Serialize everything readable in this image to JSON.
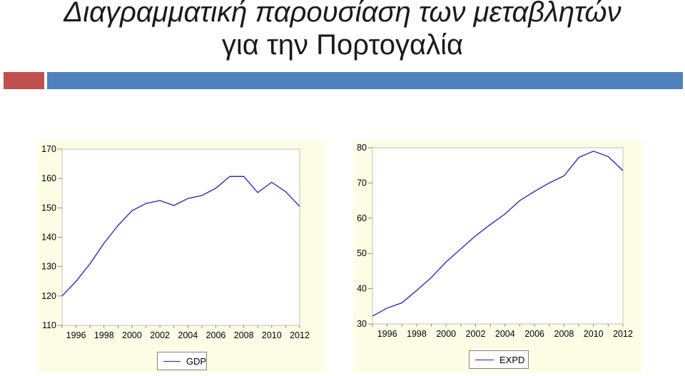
{
  "slide": {
    "title_line1": "Διαγραμματική παρουσίαση των μεταβλητών",
    "title_line2": "για την Πορτογαλία"
  },
  "colors": {
    "accent_red": "#c0504d",
    "accent_blue": "#4f81bd",
    "panel_bg": "#fdfde6",
    "line": "#1f1fb4"
  },
  "chart_data": [
    {
      "type": "line",
      "x": [
        1995,
        1996,
        1997,
        1998,
        1999,
        2000,
        2001,
        2002,
        2003,
        2004,
        2005,
        2006,
        2007,
        2008,
        2009,
        2010,
        2011,
        2012
      ],
      "series": [
        {
          "name": "GDP",
          "values": [
            120,
            125,
            131,
            138,
            144,
            149,
            151.5,
            152.5,
            150.8,
            153.2,
            154.2,
            156.7,
            160.7,
            160.7,
            155.2,
            158.7,
            155.5,
            150.5
          ]
        }
      ],
      "xticks": [
        "1996",
        "1998",
        "2000",
        "2002",
        "2004",
        "2006",
        "2008",
        "2010",
        "2012"
      ],
      "yticks": [
        "110",
        "120",
        "130",
        "140",
        "150",
        "160",
        "170"
      ],
      "ylim": [
        110,
        170
      ],
      "xlim": [
        1995,
        2012
      ],
      "legend": "bottom-center",
      "grid": false
    },
    {
      "type": "line",
      "x": [
        1995,
        1996,
        1997,
        1998,
        1999,
        2000,
        2001,
        2002,
        2003,
        2004,
        2005,
        2006,
        2007,
        2008,
        2009,
        2010,
        2011,
        2012
      ],
      "series": [
        {
          "name": "EXPD",
          "values": [
            32.2,
            34.5,
            36,
            39.5,
            43.2,
            47.6,
            51.3,
            55,
            58.2,
            61.2,
            65,
            67.6,
            70,
            72,
            77.2,
            79,
            77.5,
            73.5
          ]
        }
      ],
      "xticks": [
        "1996",
        "1998",
        "2000",
        "2002",
        "2004",
        "2006",
        "2008",
        "2010",
        "2012"
      ],
      "yticks": [
        "30",
        "40",
        "50",
        "60",
        "70",
        "80"
      ],
      "ylim": [
        30,
        80
      ],
      "xlim": [
        1995,
        2012
      ],
      "legend": "bottom-center",
      "grid": false
    }
  ]
}
